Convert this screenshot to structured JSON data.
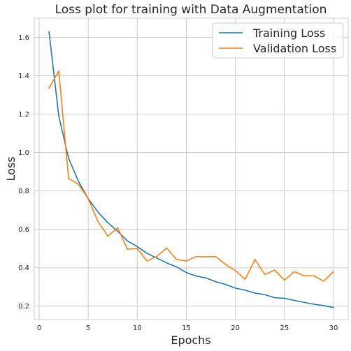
{
  "chart_data": {
    "type": "line",
    "title": "Loss plot for training with Data Augmentation",
    "xlabel": "Epochs",
    "ylabel": "Loss",
    "xlim": [
      -0.5,
      31.5
    ],
    "ylim": [
      0.13,
      1.7
    ],
    "xticks": [
      "0",
      "5",
      "10",
      "15",
      "20",
      "25",
      "30"
    ],
    "yticks": [
      "0.2",
      "0.4",
      "0.6",
      "0.8",
      "1.0",
      "1.2",
      "1.4",
      "1.6"
    ],
    "grid": true,
    "legend_position": "top-right",
    "x": [
      1,
      2,
      3,
      4,
      5,
      6,
      7,
      8,
      9,
      10,
      11,
      12,
      13,
      14,
      15,
      16,
      17,
      18,
      19,
      20,
      21,
      22,
      23,
      24,
      25,
      26,
      27,
      28,
      29,
      30
    ],
    "series": [
      {
        "name": "Training Loss",
        "color": "#1f77b4",
        "values": [
          1.63,
          1.19,
          0.97,
          0.85,
          0.76,
          0.69,
          0.635,
          0.59,
          0.54,
          0.51,
          0.475,
          0.45,
          0.425,
          0.405,
          0.375,
          0.357,
          0.347,
          0.327,
          0.313,
          0.294,
          0.283,
          0.268,
          0.26,
          0.244,
          0.241,
          0.23,
          0.22,
          0.21,
          0.203,
          0.193
        ]
      },
      {
        "name": "Validation Loss",
        "color": "#ff7f0e",
        "values": [
          1.335,
          1.425,
          0.865,
          0.835,
          0.76,
          0.64,
          0.565,
          0.608,
          0.497,
          0.5,
          0.435,
          0.46,
          0.503,
          0.443,
          0.435,
          0.458,
          0.457,
          0.458,
          0.417,
          0.385,
          0.34,
          0.443,
          0.365,
          0.388,
          0.335,
          0.38,
          0.358,
          0.358,
          0.33,
          0.38
        ]
      }
    ]
  }
}
